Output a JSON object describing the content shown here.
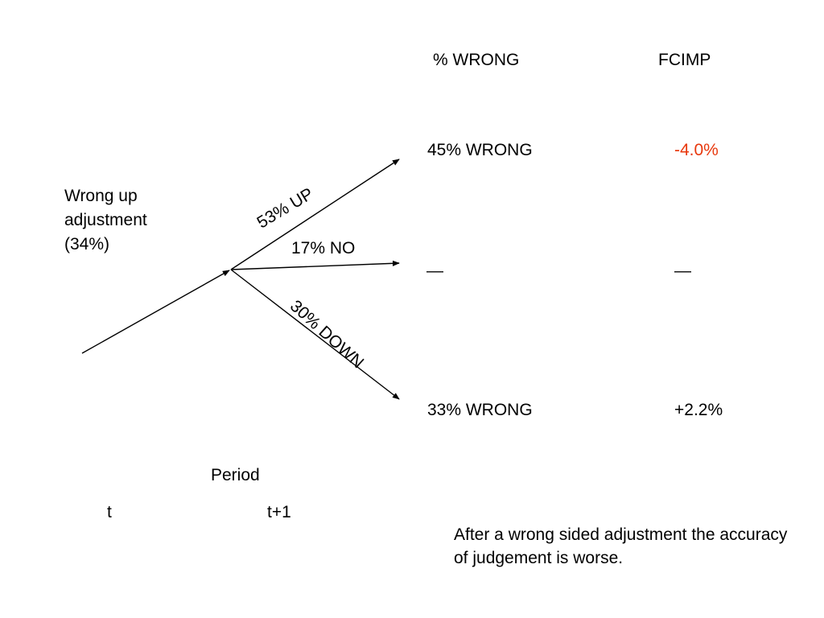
{
  "headers": {
    "wrong": "% WRONG",
    "fcimp": "FCIMP"
  },
  "origin": {
    "label_lines": [
      "Wrong up",
      "adjustment",
      "(34%)"
    ]
  },
  "branches": {
    "up": {
      "label": "53% UP",
      "wrong": "45% WRONG",
      "fcimp": "-4.0%",
      "fcimp_color": "#e8380d"
    },
    "no": {
      "label": "17% NO",
      "wrong": "—",
      "fcimp": "—"
    },
    "down": {
      "label": "30% DOWN",
      "wrong": "33% WRONG",
      "fcimp": "+2.2%"
    }
  },
  "axis": {
    "title": "Period",
    "start": "t",
    "end": "t+1"
  },
  "conclusion": "After a wrong sided adjustment the accuracy of judgement is worse."
}
